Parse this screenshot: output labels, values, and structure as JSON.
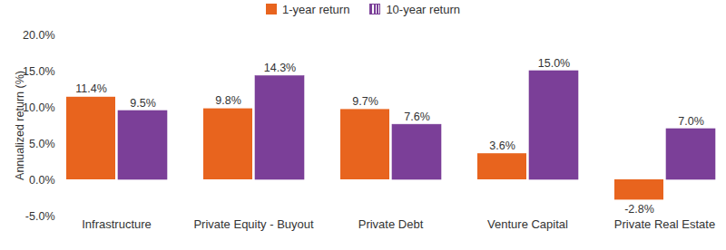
{
  "chart_data": {
    "type": "bar",
    "categories": [
      "Infrastructure",
      "Private Equity - Buyout",
      "Private Debt",
      "Venture Capital",
      "Private Real Estate"
    ],
    "series": [
      {
        "name": "1-year return",
        "color": "#e8641e",
        "values": [
          11.4,
          9.8,
          9.7,
          3.6,
          -2.8
        ],
        "value_labels": [
          "11.4%",
          "9.8%",
          "9.7%",
          "3.6%",
          "-2.8%"
        ]
      },
      {
        "name": "10-year return",
        "color": "#7b3f98",
        "values": [
          9.5,
          14.3,
          7.6,
          15.0,
          7.0
        ],
        "value_labels": [
          "9.5%",
          "14.3%",
          "7.6%",
          "15.0%",
          "7.0%"
        ]
      }
    ],
    "ylabel": "Annualized return (%)",
    "ylim": [
      -5,
      20
    ],
    "yticks": [
      {
        "value": -5,
        "label": "-5.0%"
      },
      {
        "value": 0,
        "label": "0.0%"
      },
      {
        "value": 5,
        "label": "5.0%"
      },
      {
        "value": 10,
        "label": "10.0%"
      },
      {
        "value": 15,
        "label": "15.0%"
      },
      {
        "value": 20,
        "label": "20.0%"
      }
    ],
    "grid": false,
    "legend": "top",
    "data_labels": true
  }
}
